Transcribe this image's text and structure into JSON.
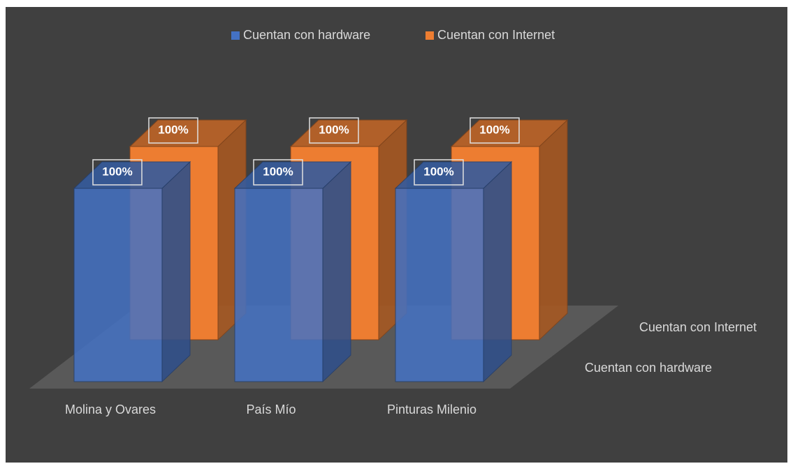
{
  "chart_data": {
    "type": "bar3d",
    "categories": [
      "Molina y Ovares",
      "País Mío",
      "Pinturas Milenio"
    ],
    "series": [
      {
        "name": "Cuentan con hardware",
        "color": "#4472c4",
        "values": [
          100,
          100,
          100
        ],
        "value_labels": [
          "100%",
          "100%",
          "100%"
        ]
      },
      {
        "name": "Cuentan con Internet",
        "color": "#ed7d31",
        "values": [
          100,
          100,
          100
        ],
        "value_labels": [
          "100%",
          "100%",
          "100%"
        ]
      }
    ],
    "legend": "top"
  }
}
